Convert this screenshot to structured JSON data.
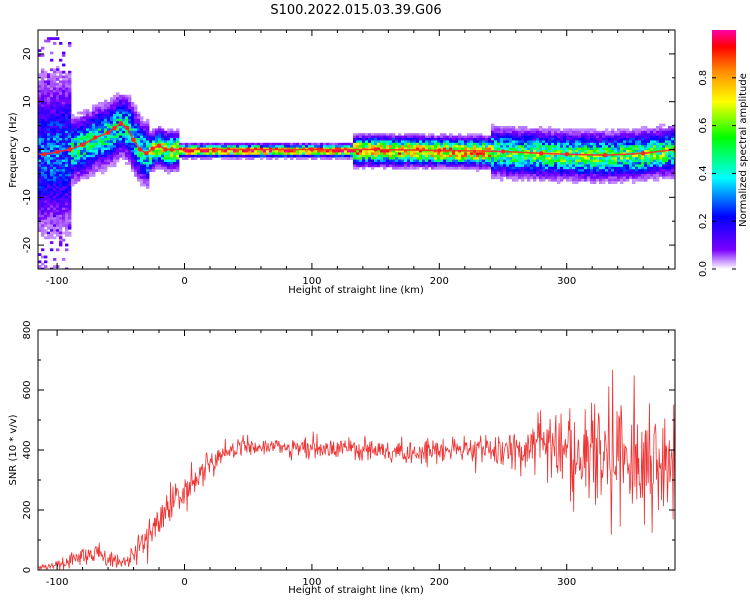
{
  "title": "S100.2022.015.03.39.G06",
  "chart_data": [
    {
      "type": "heatmap",
      "xlabel": "Height of straight line (km)",
      "ylabel": "Frequency (Hz)",
      "xlim": [
        -115,
        385
      ],
      "ylim": [
        -25,
        25
      ],
      "x_ticks": [
        -100,
        0,
        100,
        200,
        300
      ],
      "y_ticks": [
        -20,
        -10,
        0,
        10,
        20
      ],
      "colorbar": {
        "label": "Normalized spectral amplitude",
        "range": [
          0,
          1
        ],
        "ticks": [
          "0.0",
          "0.2",
          "0.4",
          "0.6",
          "0.8"
        ],
        "colors": [
          "#ffffff",
          "#7a00ff",
          "#0000ff",
          "#00ffff",
          "#00ff00",
          "#ffff00",
          "#ff8800",
          "#ff0000",
          "#ff00aa"
        ]
      },
      "ridge_frequency": {
        "x": [
          -110,
          -100,
          -90,
          -80,
          -70,
          -60,
          -55,
          -50,
          -45,
          -40,
          -35,
          -30,
          -25,
          -20,
          -15,
          -10,
          0,
          50,
          100,
          150,
          200,
          250,
          280,
          300,
          330,
          360,
          385
        ],
        "freq": [
          -1,
          -0.5,
          0,
          1,
          2.5,
          3.5,
          4.5,
          5.5,
          4.5,
          2,
          0,
          -0.8,
          0.2,
          0.8,
          0,
          0,
          0,
          0,
          0,
          0,
          -0.2,
          -0.4,
          -0.8,
          -1,
          -1.2,
          -0.8,
          0
        ]
      }
    },
    {
      "type": "line",
      "xlabel": "Height of straight line (km)",
      "ylabel": "SNR (10 * v/v)",
      "xlim": [
        -115,
        385
      ],
      "ylim": [
        0,
        800
      ],
      "x_ticks": [
        -100,
        0,
        100,
        200,
        300
      ],
      "y_ticks": [
        0,
        200,
        400,
        600,
        800
      ],
      "color": "#ee3333",
      "series": [
        {
          "x": [
            -115,
            -100,
            -90,
            -80,
            -70,
            -60,
            -50,
            -40,
            -30,
            -20,
            -10,
            0,
            10,
            20,
            30,
            40,
            50,
            75,
            100,
            125,
            150,
            175,
            200,
            225,
            250,
            275,
            300,
            325,
            350,
            385
          ],
          "y": [
            8,
            15,
            35,
            45,
            55,
            35,
            25,
            45,
            110,
            170,
            230,
            250,
            300,
            350,
            385,
            410,
            415,
            410,
            405,
            405,
            400,
            390,
            395,
            405,
            400,
            410,
            400,
            380,
            360,
            360
          ],
          "spread": [
            8,
            12,
            25,
            30,
            30,
            25,
            20,
            30,
            50,
            60,
            50,
            45,
            45,
            40,
            35,
            35,
            35,
            30,
            30,
            30,
            30,
            30,
            35,
            40,
            45,
            70,
            120,
            180,
            180,
            160
          ]
        }
      ]
    }
  ]
}
